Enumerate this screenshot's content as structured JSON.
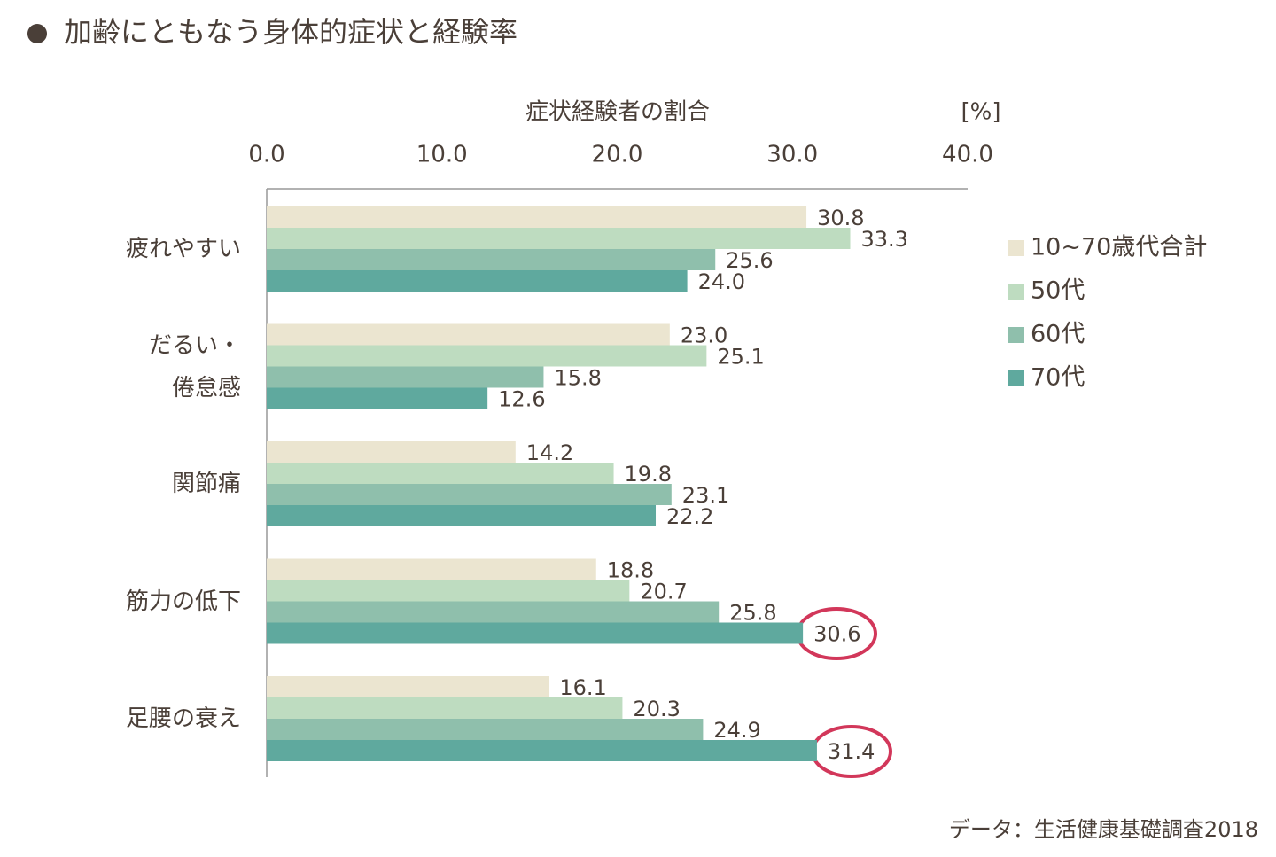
{
  "chart_data": {
    "type": "bar",
    "orientation": "horizontal",
    "title": "加齢にともなう身体的症状と経験率",
    "x_label": "症状経験者の割合",
    "x_unit": "[%]",
    "source": "データ：生活健康基礎調査2018",
    "categories": [
      "疲れやすい",
      "だるい・\n倦怠感",
      "関節痛",
      "筋力の低下",
      "足腰の衰え"
    ],
    "xlim": [
      0,
      40
    ],
    "xticks": [
      {
        "value": 0,
        "label": "0.0"
      },
      {
        "value": 10,
        "label": "10.0"
      },
      {
        "value": 20,
        "label": "20.0"
      },
      {
        "value": 30,
        "label": "30.0"
      },
      {
        "value": 40,
        "label": "40.0"
      }
    ],
    "series": [
      {
        "name": "10~70歳代合計",
        "color": "#ebe5d0",
        "values": [
          30.8,
          23.0,
          14.2,
          18.8,
          16.1
        ],
        "value_labels": [
          "30.8",
          "23.0",
          "14.2",
          "18.8",
          "16.1"
        ]
      },
      {
        "name": "50代",
        "color": "#bedcc0",
        "values": [
          33.3,
          25.1,
          19.8,
          20.7,
          20.3
        ],
        "value_labels": [
          "33.3",
          "25.1",
          "19.8",
          "20.7",
          "20.3"
        ]
      },
      {
        "name": "60代",
        "color": "#8fbfac",
        "values": [
          25.6,
          15.8,
          23.1,
          25.8,
          24.9
        ],
        "value_labels": [
          "25.6",
          "15.8",
          "23.1",
          "25.8",
          "24.9"
        ]
      },
      {
        "name": "70代",
        "color": "#5fa99e",
        "values": [
          24.0,
          12.6,
          22.2,
          30.6,
          31.4
        ],
        "value_labels": [
          "24.0",
          "12.6",
          "22.2",
          "30.6",
          "31.4"
        ]
      }
    ]
  }
}
